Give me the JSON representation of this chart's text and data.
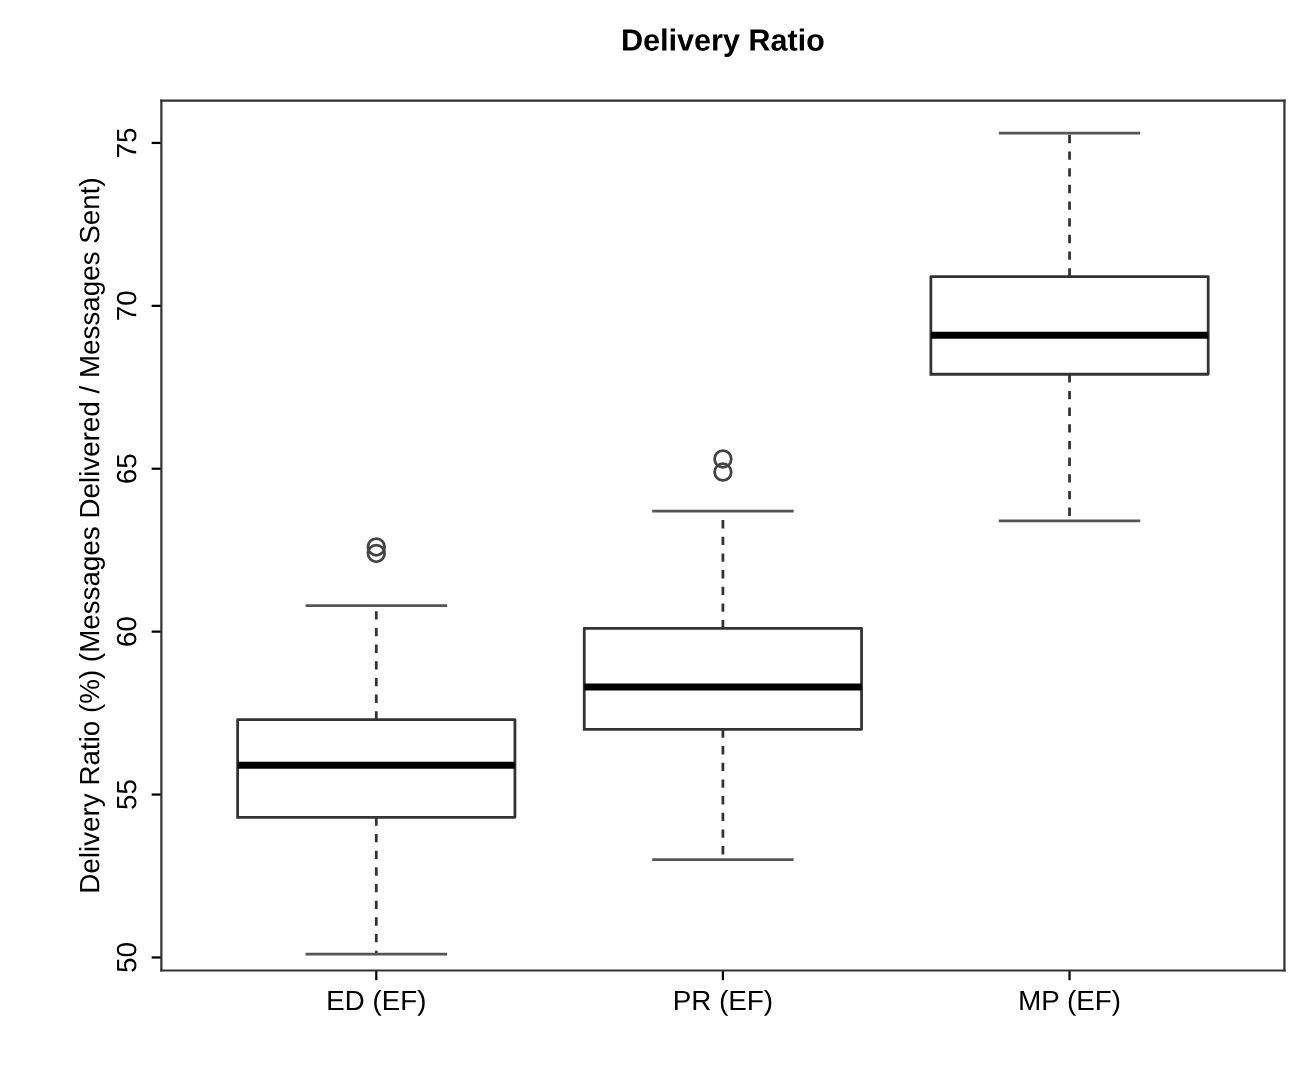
{
  "chart_data": {
    "type": "box",
    "title": "Delivery Ratio",
    "ylabel": "Delivery Ratio (%) (Messages Delivered / Messages Sent)",
    "categories": [
      "ED (EF)",
      "PR (EF)",
      "MP (EF)"
    ],
    "boxes": [
      {
        "low": 50.1,
        "q1": 54.3,
        "median": 55.9,
        "q3": 57.3,
        "high": 60.8,
        "outliers": [
          62.6,
          62.4
        ]
      },
      {
        "low": 53.0,
        "q1": 57.0,
        "median": 58.3,
        "q3": 60.1,
        "high": 63.7,
        "outliers": [
          65.3,
          64.9
        ]
      },
      {
        "low": 63.4,
        "q1": 67.9,
        "median": 69.1,
        "q3": 70.9,
        "high": 75.3
      }
    ],
    "ylim": [
      49.6,
      76.3
    ],
    "yticks": [
      50,
      55,
      60,
      65,
      70,
      75
    ],
    "grid": false,
    "legend": false
  }
}
